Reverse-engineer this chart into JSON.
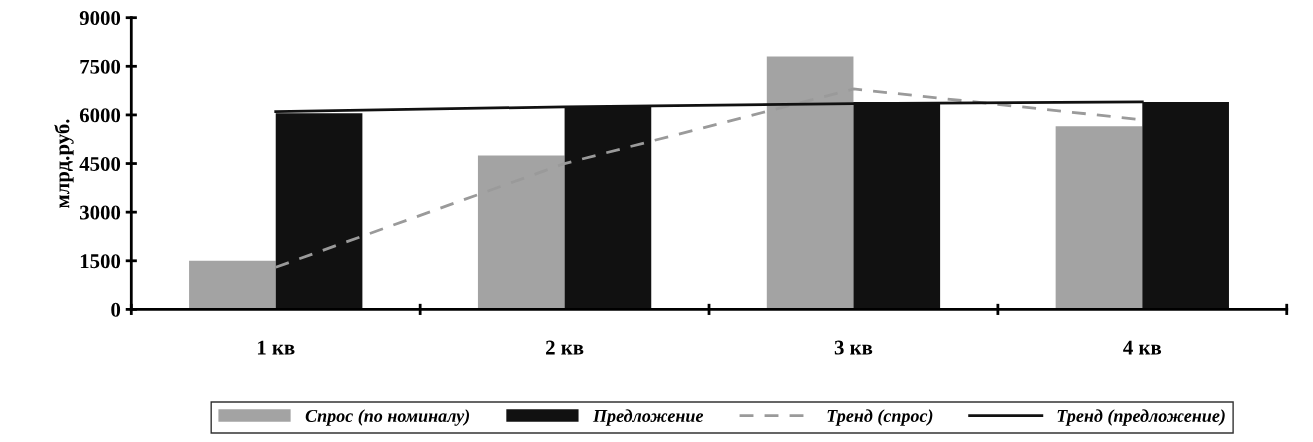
{
  "chart_data": {
    "type": "bar",
    "ylabel": "млрд.руб.",
    "categories": [
      "1 кв",
      "2 кв",
      "3 кв",
      "4 кв"
    ],
    "series": [
      {
        "name": "Спрос (по номиналу)",
        "color": "#a3a3a3",
        "values": [
          1500,
          4750,
          7800,
          5650
        ]
      },
      {
        "name": "Предложение",
        "color": "#111111",
        "values": [
          6050,
          6250,
          6400,
          6400
        ]
      },
      {
        "name": "Тренд (спрос)",
        "type": "line",
        "line_style": "dashed",
        "color": "#9a9a9a",
        "values": [
          1300,
          4500,
          6800,
          5850
        ]
      },
      {
        "name": "Тренд (предложение)",
        "type": "line",
        "line_style": "solid",
        "color": "#111111",
        "values": [
          6100,
          6250,
          6350,
          6400
        ]
      }
    ],
    "ylim": [
      0,
      9000
    ],
    "yticks": [
      0,
      1500,
      3000,
      4500,
      6000,
      7500,
      9000
    ],
    "grid": false,
    "legend": "bottom"
  }
}
